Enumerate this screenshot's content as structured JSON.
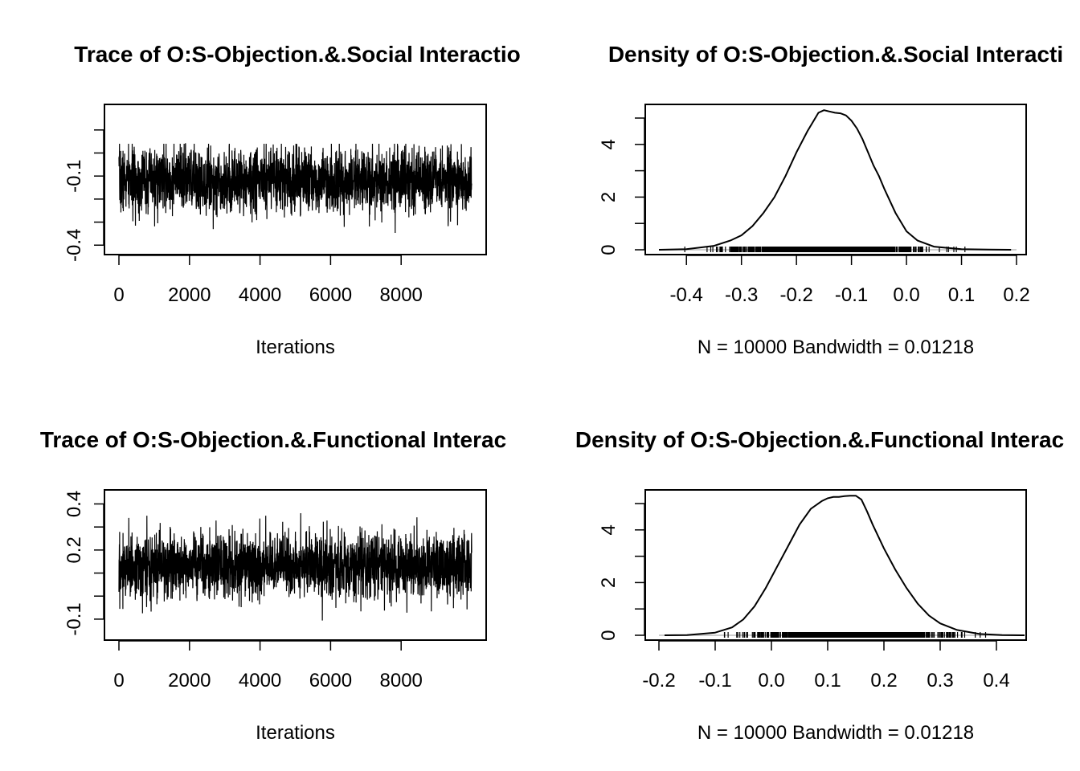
{
  "chart_data": [
    {
      "type": "line",
      "title": "Trace of O:S-Objection.&.Social Interactio",
      "xlabel": "Iterations",
      "ylabel": "",
      "xlim": [
        0,
        10000
      ],
      "ylim": [
        -0.42,
        0.19
      ],
      "x_ticks": [
        "0",
        "2000",
        "4000",
        "6000",
        "8000"
      ],
      "x_tick_values": [
        0,
        2000,
        4000,
        6000,
        8000
      ],
      "y_tick_values": [
        -0.4,
        -0.3,
        -0.2,
        -0.1,
        0.0,
        0.1
      ],
      "y_labels": [
        {
          "value": -0.4,
          "label": "-0.4"
        },
        {
          "value": -0.1,
          "label": "-0.1"
        }
      ],
      "series": [
        {
          "n": 10000,
          "mean": -0.12,
          "sd": 0.07,
          "min": -0.42,
          "max": 0.04
        }
      ]
    },
    {
      "type": "line",
      "title": "Density of O:S-Objection.&.Social Interacti",
      "xlabel": "N = 10000   Bandwidth = 0.01218",
      "ylabel": "",
      "xlim": [
        -0.45,
        0.2
      ],
      "ylim": [
        0,
        5.3
      ],
      "x_ticks": [
        "-0.4",
        "-0.3",
        "-0.2",
        "-0.1",
        "0.0",
        "0.1",
        "0.2"
      ],
      "x_tick_values": [
        -0.4,
        -0.3,
        -0.2,
        -0.1,
        0.0,
        0.1,
        0.2
      ],
      "y_tick_values": [
        0,
        1,
        2,
        3,
        4,
        5
      ],
      "y_labels": [
        {
          "value": 0,
          "label": "0"
        },
        {
          "value": 2,
          "label": "2"
        },
        {
          "value": 4,
          "label": "4"
        }
      ],
      "density": {
        "x": [
          -0.45,
          -0.4,
          -0.35,
          -0.32,
          -0.3,
          -0.28,
          -0.26,
          -0.24,
          -0.22,
          -0.2,
          -0.18,
          -0.16,
          -0.15,
          -0.14,
          -0.13,
          -0.12,
          -0.11,
          -0.1,
          -0.09,
          -0.08,
          -0.07,
          -0.06,
          -0.05,
          -0.04,
          -0.02,
          0.0,
          0.02,
          0.05,
          0.1,
          0.15,
          0.19
        ],
        "y": [
          0.0,
          0.02,
          0.15,
          0.35,
          0.55,
          0.9,
          1.4,
          2.0,
          2.8,
          3.7,
          4.5,
          5.2,
          5.3,
          5.25,
          5.2,
          5.18,
          5.1,
          4.9,
          4.6,
          4.2,
          3.7,
          3.2,
          2.8,
          2.3,
          1.4,
          0.7,
          0.35,
          0.12,
          0.02,
          0.005,
          0.0
        ]
      }
    },
    {
      "type": "line",
      "title": "Trace of O:S-Objection.&.Functional Interac",
      "xlabel": "Iterations",
      "ylabel": "",
      "xlim": [
        0,
        10000
      ],
      "ylim": [
        -0.17,
        0.44
      ],
      "x_ticks": [
        "0",
        "2000",
        "4000",
        "6000",
        "8000"
      ],
      "x_tick_values": [
        0,
        2000,
        4000,
        6000,
        8000
      ],
      "y_tick_values": [
        -0.1,
        0.0,
        0.1,
        0.2,
        0.3,
        0.4
      ],
      "y_labels": [
        {
          "value": -0.1,
          "label": "-0.1"
        },
        {
          "value": 0.2,
          "label": "0.2"
        },
        {
          "value": 0.4,
          "label": "0.4"
        }
      ],
      "series": [
        {
          "n": 10000,
          "mean": 0.13,
          "sd": 0.07,
          "min": -0.17,
          "max": 0.42
        }
      ]
    },
    {
      "type": "line",
      "title": "Density of O:S-Objection.&.Functional Interac",
      "xlabel": "N = 10000   Bandwidth = 0.01218",
      "ylabel": "",
      "xlim": [
        -0.2,
        0.45
      ],
      "ylim": [
        0,
        5.3
      ],
      "x_ticks": [
        "-0.2",
        "-0.1",
        "0.0",
        "0.1",
        "0.2",
        "0.3",
        "0.4"
      ],
      "x_tick_values": [
        -0.2,
        -0.1,
        0.0,
        0.1,
        0.2,
        0.3,
        0.4
      ],
      "y_tick_values": [
        0,
        1,
        2,
        3,
        4,
        5
      ],
      "y_labels": [
        {
          "value": 0,
          "label": "0"
        },
        {
          "value": 2,
          "label": "2"
        },
        {
          "value": 4,
          "label": "4"
        }
      ],
      "density": {
        "x": [
          -0.19,
          -0.15,
          -0.1,
          -0.07,
          -0.05,
          -0.03,
          -0.01,
          0.01,
          0.03,
          0.05,
          0.07,
          0.09,
          0.1,
          0.11,
          0.12,
          0.13,
          0.14,
          0.15,
          0.16,
          0.17,
          0.18,
          0.2,
          0.22,
          0.24,
          0.26,
          0.28,
          0.3,
          0.33,
          0.37,
          0.41,
          0.45
        ],
        "y": [
          0.0,
          0.01,
          0.1,
          0.3,
          0.6,
          1.1,
          1.8,
          2.6,
          3.4,
          4.2,
          4.8,
          5.1,
          5.2,
          5.25,
          5.25,
          5.28,
          5.3,
          5.3,
          5.15,
          4.7,
          4.2,
          3.3,
          2.5,
          1.8,
          1.2,
          0.75,
          0.45,
          0.2,
          0.05,
          0.01,
          0.0
        ]
      }
    }
  ]
}
